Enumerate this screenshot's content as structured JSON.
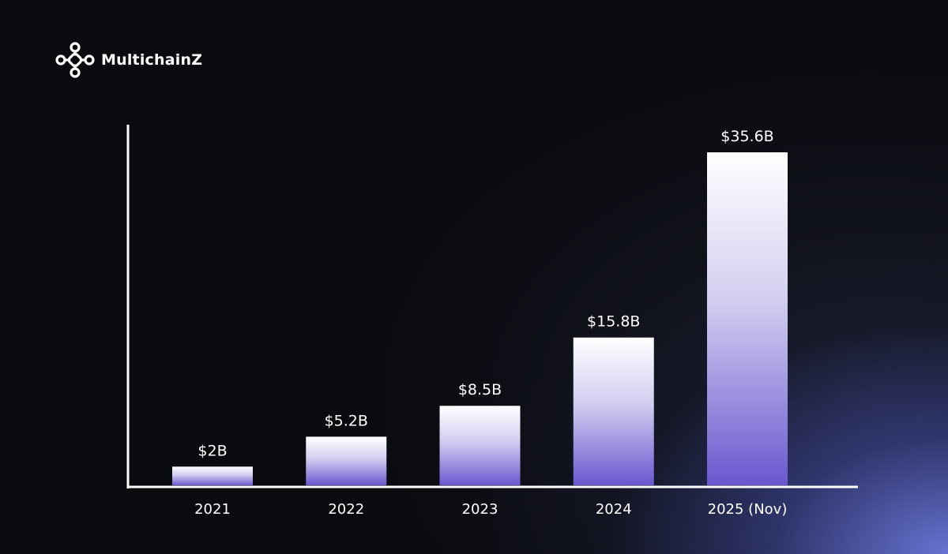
{
  "brand": {
    "name": "MultichainZ",
    "logo_icon": "knot-logo-icon"
  },
  "colors": {
    "background": "#0a0b0f",
    "bar_top": "#ffffff",
    "bar_bottom": "#6a57cf",
    "axis": "#ffffff",
    "text": "#ffffff"
  },
  "chart_data": {
    "type": "bar",
    "title": "",
    "xlabel": "",
    "ylabel": "",
    "categories": [
      "2021",
      "2022",
      "2023",
      "2024",
      "2025 (Nov)"
    ],
    "values": [
      2,
      5.2,
      8.5,
      15.8,
      35.6
    ],
    "value_labels": [
      "$2B",
      "$5.2B",
      "$8.5B",
      "$15.8B",
      "$35.6B"
    ],
    "units": "USD billions",
    "grid": false,
    "legend": "none"
  }
}
